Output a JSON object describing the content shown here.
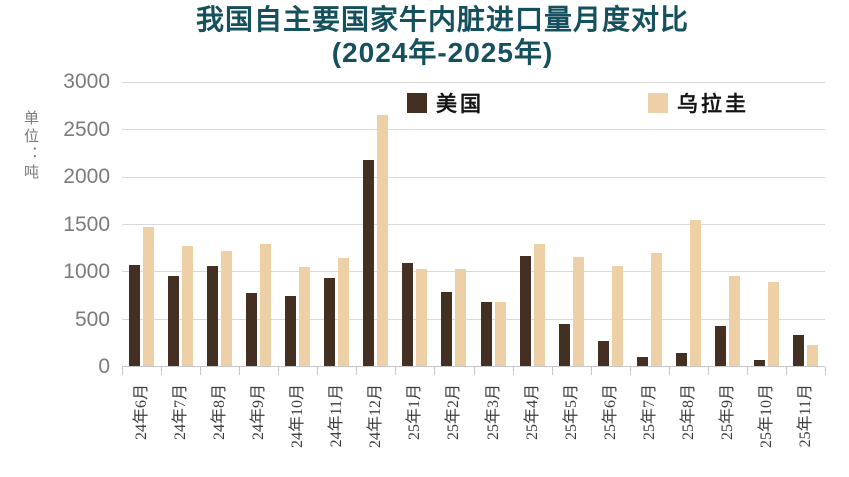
{
  "title": {
    "line1": "我国自主要国家牛内脏进口量月度对比",
    "line2": "(2024年-2025年)"
  },
  "y_axis": {
    "unit_label": "单位：吨",
    "ticks": [
      0,
      500,
      1000,
      1500,
      2000,
      2500,
      3000
    ]
  },
  "chart_data": {
    "type": "bar",
    "title": "我国自主要国家牛内脏进口量月度对比 (2024年-2025年)",
    "ylabel": "单位：吨",
    "xlabel": "",
    "ylim": [
      0,
      3000
    ],
    "ytick_interval": 500,
    "grid": true,
    "legend_position": "top",
    "categories": [
      "24年6月",
      "24年7月",
      "24年8月",
      "24年9月",
      "24年10月",
      "24年11月",
      "24年12月",
      "25年1月",
      "25年2月",
      "25年3月",
      "25年4月",
      "25年5月",
      "25年6月",
      "25年7月",
      "25年8月",
      "25年9月",
      "25年10月",
      "25年11月"
    ],
    "series": [
      {
        "name": "美国",
        "color": "#442f23",
        "values": [
          1070,
          950,
          1060,
          770,
          740,
          930,
          2180,
          1090,
          780,
          680,
          1160,
          440,
          260,
          100,
          140,
          420,
          60,
          330
        ]
      },
      {
        "name": "乌拉圭",
        "color": "#eed0a6",
        "values": [
          1470,
          1265,
          1220,
          1290,
          1050,
          1140,
          2650,
          1030,
          1020,
          680,
          1290,
          1150,
          1060,
          1195,
          1540,
          955,
          890,
          220
        ]
      }
    ]
  },
  "colors": {
    "title": "#15505e",
    "grid": "#d9d9d9",
    "axis": "#c6c6c6",
    "y_tick_label": "#7b7b7b",
    "x_tick_label": "#3d3d3d",
    "legend_text": "#141414",
    "background": "#ffffff"
  }
}
